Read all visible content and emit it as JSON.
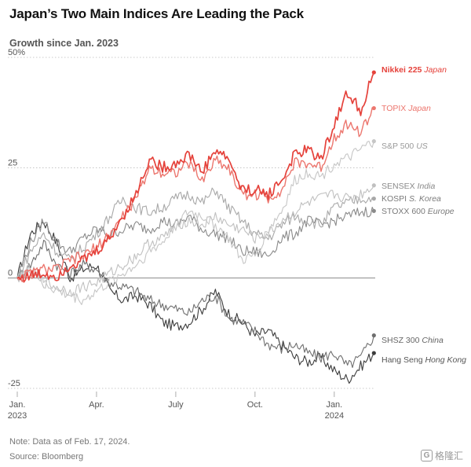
{
  "title": "Japan’s Two Main Indices Are Leading the Pack",
  "subtitle": "Growth since Jan. 2023",
  "note": "Note: Data as of Feb. 17, 2024.",
  "source": "Source: Bloomberg",
  "watermark": "格隆汇",
  "chart_data": {
    "type": "line",
    "title": "Japan’s Two Main Indices Are Leading the Pack",
    "subtitle": "Growth since Jan. 2023",
    "ylabel": "",
    "xlabel": "",
    "ylim": [
      -25,
      50
    ],
    "y_ticks": [
      {
        "value": 50,
        "label": "50%"
      },
      {
        "value": 25,
        "label": "25"
      },
      {
        "value": 0,
        "label": "0"
      },
      {
        "value": -25,
        "label": "-25"
      }
    ],
    "x_ticks": [
      {
        "t": 0,
        "label": "Jan.",
        "label2": "2023"
      },
      {
        "t": 3,
        "label": "Apr.",
        "label2": ""
      },
      {
        "t": 6,
        "label": "July",
        "label2": ""
      },
      {
        "t": 9,
        "label": "Oct.",
        "label2": ""
      },
      {
        "t": 12,
        "label": "Jan.",
        "label2": "2024"
      }
    ],
    "xlim": [
      0,
      13.55
    ],
    "grid": true,
    "legend": "right-end labels",
    "x": [
      0,
      0.5,
      1,
      1.5,
      2,
      2.5,
      3,
      3.5,
      4,
      4.5,
      5,
      5.5,
      6,
      6.5,
      7,
      7.5,
      8,
      8.5,
      9,
      9.5,
      10,
      10.5,
      11,
      11.5,
      12,
      12.5,
      13,
      13.5
    ],
    "series": [
      {
        "name": "Nikkei 225",
        "country": "Japan",
        "color": "#e5423b",
        "width": 1.7,
        "bold": true,
        "label_color": "#e5423b",
        "values": [
          0,
          0.5,
          1,
          0.5,
          3,
          4,
          6,
          9,
          14,
          19,
          27,
          25,
          26,
          28,
          24,
          29,
          27,
          20,
          20,
          19,
          22,
          28,
          29,
          27,
          35,
          42,
          38,
          46.6
        ]
      },
      {
        "name": "TOPIX",
        "country": "Japan",
        "color": "#ec766e",
        "width": 1.4,
        "bold": false,
        "label_color": "#ec766e",
        "values": [
          0,
          1,
          2,
          2,
          4,
          5,
          7,
          10,
          14,
          18,
          25,
          24,
          24,
          26,
          22,
          27,
          25,
          19,
          19,
          18,
          20,
          26,
          26,
          25,
          32,
          35,
          33,
          38.5
        ]
      },
      {
        "name": "S&P 500",
        "country": "US",
        "color": "#c6c6c6",
        "width": 1.1,
        "bold": false,
        "label_color": "#9a9a9a",
        "values": [
          0,
          2,
          -1,
          -3,
          -4,
          -5,
          -3,
          -1,
          1,
          3,
          6,
          8,
          12,
          15,
          14,
          12,
          9,
          4,
          5,
          11,
          15,
          22,
          24,
          23,
          26,
          27,
          29,
          31
        ]
      },
      {
        "name": "SENSEX",
        "country": "India",
        "color": "#c0c0c0",
        "width": 1.1,
        "bold": false,
        "label_color": "#8a8a8a",
        "values": [
          0,
          2,
          -1,
          -2,
          -3,
          -2,
          -1,
          1,
          3,
          5,
          8,
          9,
          12,
          13,
          12,
          14,
          12,
          11,
          9,
          10,
          13,
          15,
          17,
          18,
          19,
          18,
          19,
          21
        ]
      },
      {
        "name": "KOSPI",
        "country": "S. Korea",
        "color": "#a8a8a8",
        "width": 1.1,
        "bold": false,
        "label_color": "#7a7a7a",
        "values": [
          0,
          6,
          10,
          6,
          4,
          7,
          10,
          14,
          18,
          16,
          15,
          16,
          18,
          19,
          17,
          20,
          16,
          13,
          10,
          9,
          12,
          14,
          13,
          12,
          16,
          17,
          18,
          18
        ]
      },
      {
        "name": "STOXX 600",
        "country": "Europe",
        "color": "#8a8a8a",
        "width": 1.1,
        "bold": false,
        "label_color": "#7a7a7a",
        "values": [
          0,
          8,
          13,
          8,
          6,
          9,
          11,
          10,
          11,
          12,
          11,
          13,
          12,
          14,
          11,
          10,
          9,
          6,
          6,
          5,
          9,
          10,
          13,
          12,
          13,
          14,
          15,
          15.2
        ]
      },
      {
        "name": "SHSZ 300",
        "country": "China",
        "color": "#6e6e6e",
        "width": 1.1,
        "bold": false,
        "label_color": "#666666",
        "values": [
          0,
          3,
          8,
          3,
          1,
          3,
          2,
          -1,
          -2,
          -3,
          -5,
          -6,
          -7,
          -8,
          -5,
          -4,
          -9,
          -10,
          -12,
          -15,
          -16,
          -15,
          -17,
          -18,
          -17,
          -20,
          -18,
          -13
        ]
      },
      {
        "name": "Hang Seng",
        "country": "Hong Kong",
        "color": "#3c3c3c",
        "width": 1.1,
        "bold": false,
        "label_color": "#555555",
        "values": [
          0,
          10,
          13,
          8,
          0,
          2,
          3,
          -3,
          -5,
          -4,
          -6,
          -10,
          -11,
          -10,
          -7,
          -3,
          -8,
          -10,
          -13,
          -12,
          -15,
          -18,
          -19,
          -18,
          -21,
          -23,
          -20,
          -17
        ]
      }
    ]
  }
}
